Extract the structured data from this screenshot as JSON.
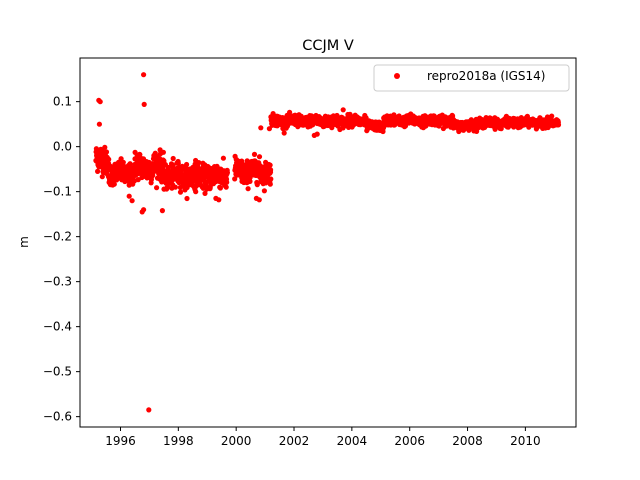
{
  "chart_data": {
    "type": "scatter",
    "title": "CCJM V",
    "xlabel": "",
    "ylabel": "m",
    "xlim": [
      1994.6,
      2011.75
    ],
    "ylim": [
      -0.623,
      0.197
    ],
    "xticks": [
      1996,
      1998,
      2000,
      2002,
      2004,
      2006,
      2008,
      2010
    ],
    "yticks": [
      0.1,
      0.0,
      -0.1,
      -0.2,
      -0.3,
      -0.4,
      -0.5,
      -0.6
    ],
    "ytick_labels": [
      "0.1",
      "0.0",
      "−0.1",
      "−0.2",
      "−0.3",
      "−0.4",
      "−0.5",
      "−0.6"
    ],
    "grid": false,
    "legend_position": "top-right",
    "series": [
      {
        "name": "repro2018a (IGS14)",
        "color": "#ff0000",
        "marker": "circle",
        "segments": [
          {
            "x_start": 1995.15,
            "x_end": 1995.6,
            "mean": -0.03,
            "spread": 0.025
          },
          {
            "x_start": 1995.6,
            "x_end": 1996.5,
            "mean": -0.06,
            "spread": 0.02
          },
          {
            "x_start": 1996.5,
            "x_end": 1997.5,
            "mean": -0.045,
            "spread": 0.025
          },
          {
            "x_start": 1997.5,
            "x_end": 1999.7,
            "mean": -0.065,
            "spread": 0.022
          },
          {
            "x_start": 1999.95,
            "x_end": 2001.2,
            "mean": -0.055,
            "spread": 0.022
          },
          {
            "x_start": 2001.2,
            "x_end": 2004.5,
            "mean": 0.057,
            "spread": 0.01
          },
          {
            "x_start": 2004.5,
            "x_end": 2005.1,
            "mean": 0.045,
            "spread": 0.008
          },
          {
            "x_start": 2005.1,
            "x_end": 2007.5,
            "mean": 0.058,
            "spread": 0.009
          },
          {
            "x_start": 2007.5,
            "x_end": 2008.3,
            "mean": 0.048,
            "spread": 0.008
          },
          {
            "x_start": 2008.3,
            "x_end": 2011.15,
            "mean": 0.053,
            "spread": 0.008
          }
        ],
        "outliers": [
          {
            "x": 1995.25,
            "y": 0.103
          },
          {
            "x": 1995.3,
            "y": 0.1
          },
          {
            "x": 1995.27,
            "y": 0.05
          },
          {
            "x": 1996.8,
            "y": 0.16
          },
          {
            "x": 1996.82,
            "y": 0.094
          },
          {
            "x": 1996.98,
            "y": -0.585
          },
          {
            "x": 1996.75,
            "y": -0.145
          },
          {
            "x": 1996.8,
            "y": -0.14
          },
          {
            "x": 1997.45,
            "y": -0.142
          },
          {
            "x": 1996.4,
            "y": -0.12
          },
          {
            "x": 1996.3,
            "y": -0.11
          },
          {
            "x": 1997.9,
            "y": -0.09
          },
          {
            "x": 1999.3,
            "y": -0.115
          },
          {
            "x": 1999.4,
            "y": -0.118
          },
          {
            "x": 1998.6,
            "y": -0.1
          },
          {
            "x": 2000.7,
            "y": -0.115
          },
          {
            "x": 2000.8,
            "y": -0.118
          },
          {
            "x": 2000.85,
            "y": 0.042
          },
          {
            "x": 2001.15,
            "y": 0.04
          },
          {
            "x": 2002.7,
            "y": 0.025
          },
          {
            "x": 2002.8,
            "y": 0.028
          },
          {
            "x": 2003.7,
            "y": 0.082
          }
        ]
      }
    ]
  }
}
